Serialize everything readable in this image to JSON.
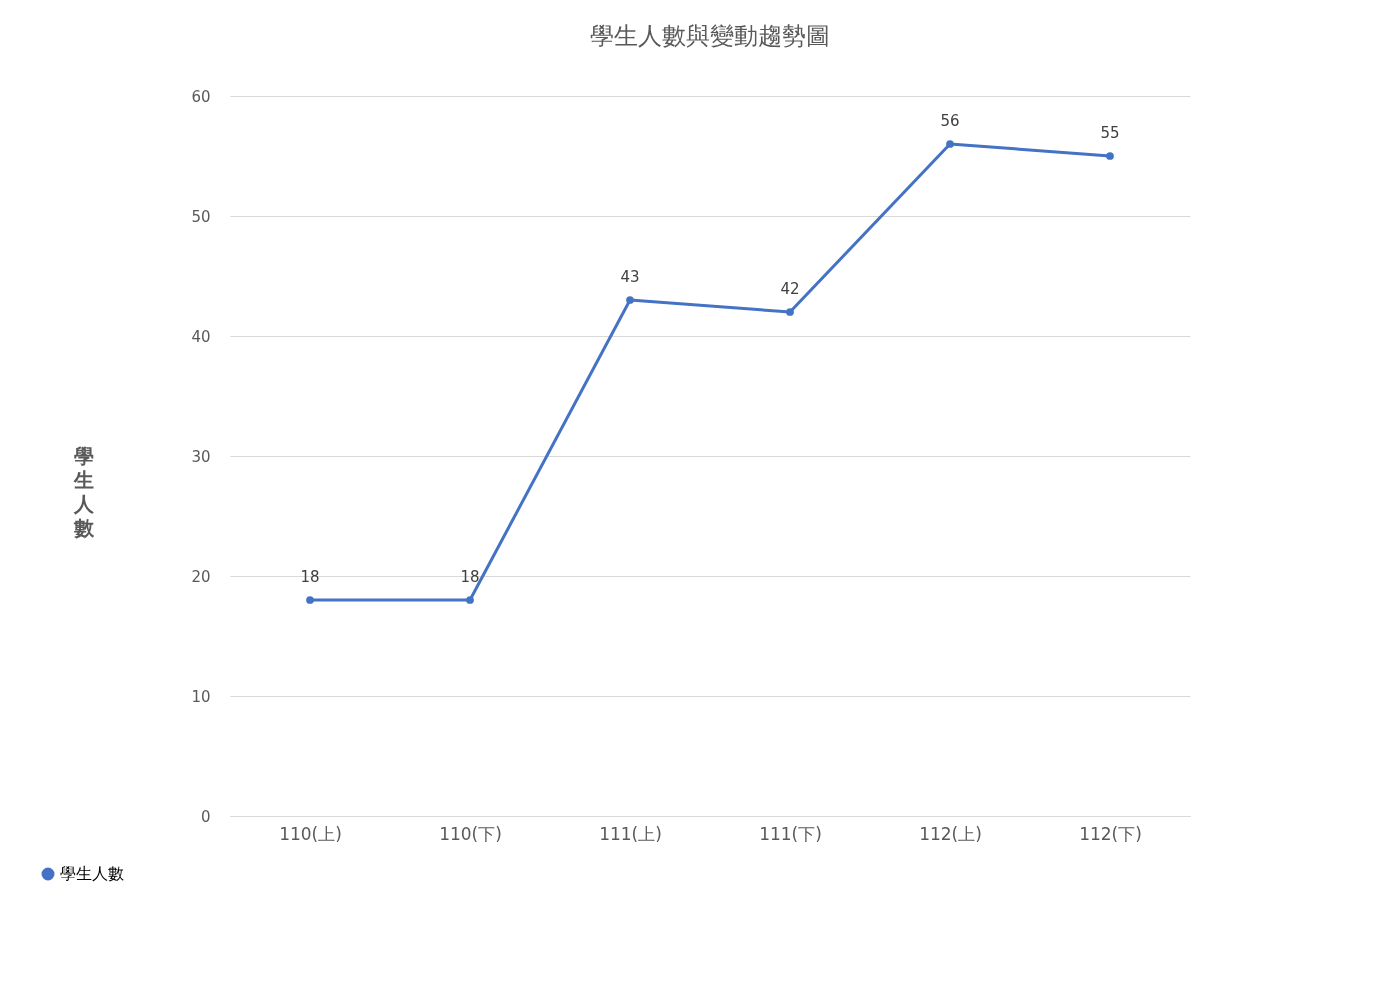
{
  "chart_data": {
    "type": "line",
    "title": "學生人數與變動趨勢圖",
    "ylabel": "學生人數",
    "categories": [
      "110(上)",
      "110(下)",
      "111(上)",
      "111(下)",
      "112(上)",
      "112(下)"
    ],
    "series": [
      {
        "name": "學生人數",
        "color": "#4472c4",
        "values": [
          18,
          18,
          43,
          42,
          56,
          55
        ]
      }
    ],
    "ylim": [
      0,
      60
    ],
    "yticks": [
      0,
      10,
      20,
      30,
      40,
      50,
      60
    ],
    "grid": "y",
    "legend": "bottom left",
    "marker": "circle",
    "line_style": "solid",
    "data_labels": true
  }
}
